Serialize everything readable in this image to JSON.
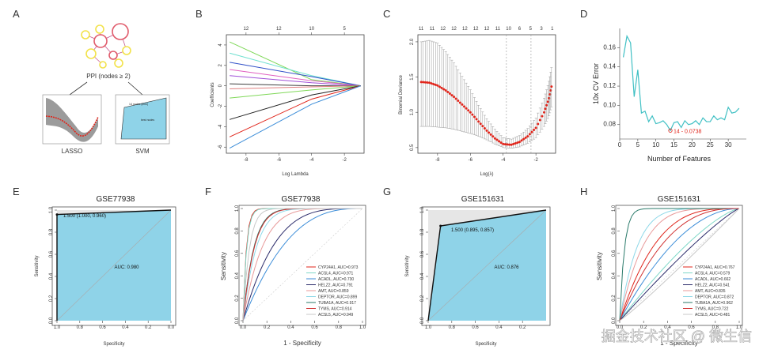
{
  "colors": {
    "roc_fill": "#8fd3e8",
    "shade": "#e6e6e6",
    "red": "#e0251b",
    "cyan_line": "#40c0c4",
    "pink_node": "#e05a6a",
    "yellow_node": "#f2e24a",
    "grey_band": "#9a9a9a"
  },
  "watermark": "掘金技术社区 @ 微生信",
  "panels": {
    "A": {
      "letter": "A",
      "ppi_label": "PPI (nodes ≥ 2)",
      "lasso_label": "LASSO",
      "svm_label": "SVM",
      "svm_inset_text1": "14 nodes (svm)",
      "svm_inset_text2": "best nodes"
    },
    "B": {
      "letter": "B",
      "xlabel": "Log Lambda",
      "ylabel": "Coefficients",
      "xticks": [
        "-8",
        "-6",
        "-4",
        "-2"
      ],
      "yticks": [
        "-6",
        "-4",
        "-2",
        "0",
        "2",
        "4"
      ],
      "topticks": [
        "12",
        "12",
        "10",
        "5"
      ]
    },
    "C": {
      "letter": "C",
      "xlabel": "Log(λ)",
      "ylabel": "Binomial Deviance",
      "xticks": [
        "-8",
        "-6",
        "-4",
        "-2"
      ],
      "yticks": [
        "0.5",
        "1.0",
        "1.5",
        "2.0"
      ],
      "topticks": [
        "11",
        "11",
        "12",
        "12",
        "12",
        "12",
        "12",
        "11",
        "10",
        "6",
        "5",
        "3",
        "1"
      ]
    },
    "D": {
      "letter": "D",
      "xlabel": "Number of Features",
      "ylabel": "10x CV Error",
      "xticks": [
        "0",
        "5",
        "10",
        "15",
        "20",
        "25",
        "30"
      ],
      "yticks": [
        "0.08",
        "0.10",
        "0.12",
        "0.14",
        "0.16"
      ],
      "annotation": "14 - 0.0738"
    },
    "E": {
      "letter": "E",
      "title": "GSE77938",
      "xlabel": "Specificity",
      "ylabel": "Sensitivity",
      "xticks": [
        "1.0",
        "0.8",
        "0.6",
        "0.4",
        "0.2",
        "0.0"
      ],
      "yticks": [
        "0.0",
        "0.2",
        "0.4",
        "0.6",
        "0.8",
        "1.0"
      ],
      "point_label": "1.500 (1.000, 0.960)",
      "auc_label": "AUC: 0.980"
    },
    "F": {
      "letter": "F",
      "title": "GSE77938",
      "xlabel": "1 -  Specificity",
      "ylabel": "Sensitivity",
      "xticks": [
        "0.0",
        "0.2",
        "0.4",
        "0.6",
        "0.8",
        "1.0"
      ],
      "yticks": [
        "0.0",
        "0.2",
        "0.4",
        "0.6",
        "0.8",
        "1.0"
      ],
      "legend": [
        {
          "label": "CYP24A1, AUC=0.973",
          "color": "#e0251b"
        },
        {
          "label": "ACSL4, AUC=0.971",
          "color": "#7fd8c8"
        },
        {
          "label": "ACADL, AUC=0.730",
          "color": "#3c8dd8"
        },
        {
          "label": "HELZ2, AUC=0.791",
          "color": "#2b2b6a"
        },
        {
          "label": "AMT, AUC=0.859",
          "color": "#e89a9a"
        },
        {
          "label": "DEPTOR, AUC=0.899",
          "color": "#8ed8e8"
        },
        {
          "label": "TUBA1A, AUC=0.917",
          "color": "#2a7a6a"
        },
        {
          "label": "TYMS, AUC=0.914",
          "color": "#d03030"
        },
        {
          "label": "ACSL5, AUC=0.949",
          "color": "#c8c8c8"
        }
      ]
    },
    "G": {
      "letter": "G",
      "title": "GSE151631",
      "xlabel": "Specificity",
      "ylabel": "Sensitivity",
      "xticks": [
        "1.0",
        "0.8",
        "0.6",
        "0.4",
        "0.2"
      ],
      "yticks": [
        "0.0",
        "0.2",
        "0.4",
        "0.6",
        "0.8",
        "1.0"
      ],
      "point_label": "1.500 (0.895, 0.857)",
      "auc_label": "AUC: 0.876"
    },
    "H": {
      "letter": "H",
      "title": "GSE151631",
      "xlabel": "1 - Specificity",
      "ylabel": "Sensitivity",
      "xticks": [
        "0.0",
        "0.2",
        "0.4",
        "0.6",
        "0.8",
        "1.0"
      ],
      "yticks": [
        "0.0",
        "0.2",
        "0.4",
        "0.6",
        "0.8",
        "1.0"
      ],
      "legend": [
        {
          "label": "CYP24A1, AUC=0.767",
          "color": "#e0251b"
        },
        {
          "label": "ACSL4, AUC=0.579",
          "color": "#7fd8c8"
        },
        {
          "label": "ACADL, AUC=0.662",
          "color": "#3c8dd8"
        },
        {
          "label": "HELZ2, AUC=0.541",
          "color": "#2b2b6a"
        },
        {
          "label": "AMT, AUC=0.835",
          "color": "#e89a9a"
        },
        {
          "label": "DEPTOR, AUC=0.872",
          "color": "#8ed8e8"
        },
        {
          "label": "TUBA1A, AUC=0.962",
          "color": "#2a7a6a"
        },
        {
          "label": "TYMS, AUC=0.722",
          "color": "#d03030"
        },
        {
          "label": "ACSL5, AUC=0.481",
          "color": "#c8c8c8"
        }
      ]
    }
  },
  "chart_data": [
    {
      "type": "line",
      "panel": "B",
      "title": "",
      "xlabel": "Log Lambda",
      "ylabel": "Coefficients",
      "xlim": [
        -9.2,
        -0.8
      ],
      "ylim": [
        -6.6,
        5
      ],
      "series": [
        {
          "name": "coef1",
          "color": "#7fd858",
          "x": [
            -9,
            -4,
            -1
          ],
          "y": [
            4.3,
            0.6,
            0
          ]
        },
        {
          "name": "coef2",
          "color": "#6fe0d0",
          "x": [
            -9,
            -4,
            -1
          ],
          "y": [
            3.2,
            1.0,
            0
          ]
        },
        {
          "name": "coef3",
          "color": "#3050c8",
          "x": [
            -9,
            -4,
            -1
          ],
          "y": [
            2.3,
            0.9,
            0
          ]
        },
        {
          "name": "coef4",
          "color": "#e060c0",
          "x": [
            -9,
            -4,
            -1
          ],
          "y": [
            1.6,
            0.5,
            0
          ]
        },
        {
          "name": "coef5",
          "color": "#a050d8",
          "x": [
            -9,
            -4,
            -1
          ],
          "y": [
            1.0,
            0.3,
            0
          ]
        },
        {
          "name": "coef6",
          "color": "#404040",
          "x": [
            -9,
            -4,
            -1
          ],
          "y": [
            0.2,
            0.0,
            0
          ]
        },
        {
          "name": "coef7",
          "color": "#e08080",
          "x": [
            -9,
            -4,
            -1
          ],
          "y": [
            -0.3,
            -0.1,
            0
          ]
        },
        {
          "name": "coef8",
          "color": "#7fd858",
          "x": [
            -9,
            -4,
            -1
          ],
          "y": [
            -1.2,
            -0.4,
            0
          ]
        },
        {
          "name": "coef9",
          "color": "#222222",
          "x": [
            -9,
            -4,
            -1
          ],
          "y": [
            -3.3,
            -0.9,
            0
          ]
        },
        {
          "name": "coef10",
          "color": "#e0251b",
          "x": [
            -9,
            -4,
            -1
          ],
          "y": [
            -5.0,
            -1.3,
            0
          ]
        },
        {
          "name": "coef11",
          "color": "#3c8dd8",
          "x": [
            -9,
            -4,
            -1
          ],
          "y": [
            -6.1,
            -1.8,
            0
          ]
        }
      ]
    },
    {
      "type": "line",
      "panel": "C",
      "title": "",
      "xlabel": "Log(λ)",
      "ylabel": "Binomial Deviance",
      "xlim": [
        -9.2,
        -0.8
      ],
      "ylim": [
        0.42,
        2.1
      ],
      "lambda_min": -3.8,
      "lambda_1se": -2.3,
      "series": [
        {
          "name": "deviance",
          "color": "#e0251b",
          "x": [
            -9.0,
            -8.5,
            -8.0,
            -7.5,
            -7.0,
            -6.5,
            -6.0,
            -5.5,
            -5.0,
            -4.5,
            -4.0,
            -3.5,
            -3.0,
            -2.5,
            -2.0,
            -1.5,
            -1.2,
            -1.0
          ],
          "y": [
            1.43,
            1.42,
            1.38,
            1.31,
            1.22,
            1.11,
            1.0,
            0.87,
            0.74,
            0.63,
            0.55,
            0.54,
            0.58,
            0.66,
            0.78,
            1.0,
            1.2,
            1.42
          ],
          "lower": [
            0.8,
            0.8,
            0.79,
            0.78,
            0.76,
            0.73,
            0.7,
            0.66,
            0.61,
            0.55,
            0.5,
            0.49,
            0.51,
            0.56,
            0.64,
            0.8,
            0.95,
            1.12
          ],
          "upper": [
            2.0,
            2.02,
            1.98,
            1.86,
            1.7,
            1.51,
            1.32,
            1.1,
            0.91,
            0.76,
            0.64,
            0.62,
            0.67,
            0.77,
            0.92,
            1.2,
            1.44,
            1.7
          ]
        }
      ]
    },
    {
      "type": "line",
      "panel": "D",
      "title": "",
      "xlabel": "Number of Features",
      "ylabel": "10x CV Error",
      "xlim": [
        0,
        35
      ],
      "ylim": [
        0.065,
        0.18
      ],
      "series": [
        {
          "name": "cv_error",
          "color": "#40c0c4",
          "x": [
            1,
            2,
            3,
            4,
            5,
            6,
            7,
            8,
            9,
            10,
            11,
            12,
            13,
            14,
            15,
            16,
            17,
            18,
            19,
            20,
            21,
            22,
            23,
            24,
            25,
            26,
            27,
            28,
            29,
            30,
            31,
            32,
            33
          ],
          "y": [
            0.15,
            0.172,
            0.165,
            0.109,
            0.137,
            0.092,
            0.094,
            0.083,
            0.089,
            0.081,
            0.082,
            0.084,
            0.08,
            0.0738,
            0.082,
            0.083,
            0.077,
            0.084,
            0.08,
            0.081,
            0.084,
            0.08,
            0.087,
            0.083,
            0.083,
            0.089,
            0.085,
            0.087,
            0.085,
            0.098,
            0.092,
            0.093,
            0.097
          ]
        }
      ],
      "highlight": {
        "x": 14,
        "y": 0.0738
      }
    },
    {
      "type": "line",
      "panel": "E",
      "title": "GSE77938",
      "xlabel": "Specificity",
      "ylabel": "Sensitivity",
      "xlim": [
        1.0,
        0.0
      ],
      "ylim": [
        0,
        1
      ],
      "series": [
        {
          "name": "roc",
          "x": [
            1.0,
            1.0,
            0.0
          ],
          "y": [
            0.0,
            0.96,
            1.0
          ]
        }
      ],
      "auc": 0.98
    },
    {
      "type": "line",
      "panel": "F",
      "title": "GSE77938",
      "xlabel": "1 -  Specificity",
      "ylabel": "Sensitivity",
      "xlim": [
        0,
        1
      ],
      "ylim": [
        0,
        1
      ],
      "series": [
        {
          "name": "CYP24A1",
          "auc": 0.973
        },
        {
          "name": "ACSL4",
          "auc": 0.971
        },
        {
          "name": "ACADL",
          "auc": 0.73
        },
        {
          "name": "HELZ2",
          "auc": 0.791
        },
        {
          "name": "AMT",
          "auc": 0.859
        },
        {
          "name": "DEPTOR",
          "auc": 0.899
        },
        {
          "name": "TUBA1A",
          "auc": 0.917
        },
        {
          "name": "TYMS",
          "auc": 0.914
        },
        {
          "name": "ACSL5",
          "auc": 0.949
        }
      ]
    },
    {
      "type": "line",
      "panel": "G",
      "title": "GSE151631",
      "xlabel": "Specificity",
      "ylabel": "Sensitivity",
      "xlim": [
        1.0,
        0.0
      ],
      "ylim": [
        0,
        1
      ],
      "series": [
        {
          "name": "roc",
          "x": [
            1.0,
            0.895,
            0.0
          ],
          "y": [
            0.0,
            0.857,
            1.0
          ]
        }
      ],
      "auc": 0.876
    },
    {
      "type": "line",
      "panel": "H",
      "title": "GSE151631",
      "xlabel": "1 - Specificity",
      "ylabel": "Sensitivity",
      "xlim": [
        0,
        1
      ],
      "ylim": [
        0,
        1
      ],
      "series": [
        {
          "name": "CYP24A1",
          "auc": 0.767
        },
        {
          "name": "ACSL4",
          "auc": 0.579
        },
        {
          "name": "ACADL",
          "auc": 0.662
        },
        {
          "name": "HELZ2",
          "auc": 0.541
        },
        {
          "name": "AMT",
          "auc": 0.835
        },
        {
          "name": "DEPTOR",
          "auc": 0.872
        },
        {
          "name": "TUBA1A",
          "auc": 0.962
        },
        {
          "name": "TYMS",
          "auc": 0.722
        },
        {
          "name": "ACSL5",
          "auc": 0.481
        }
      ]
    }
  ]
}
